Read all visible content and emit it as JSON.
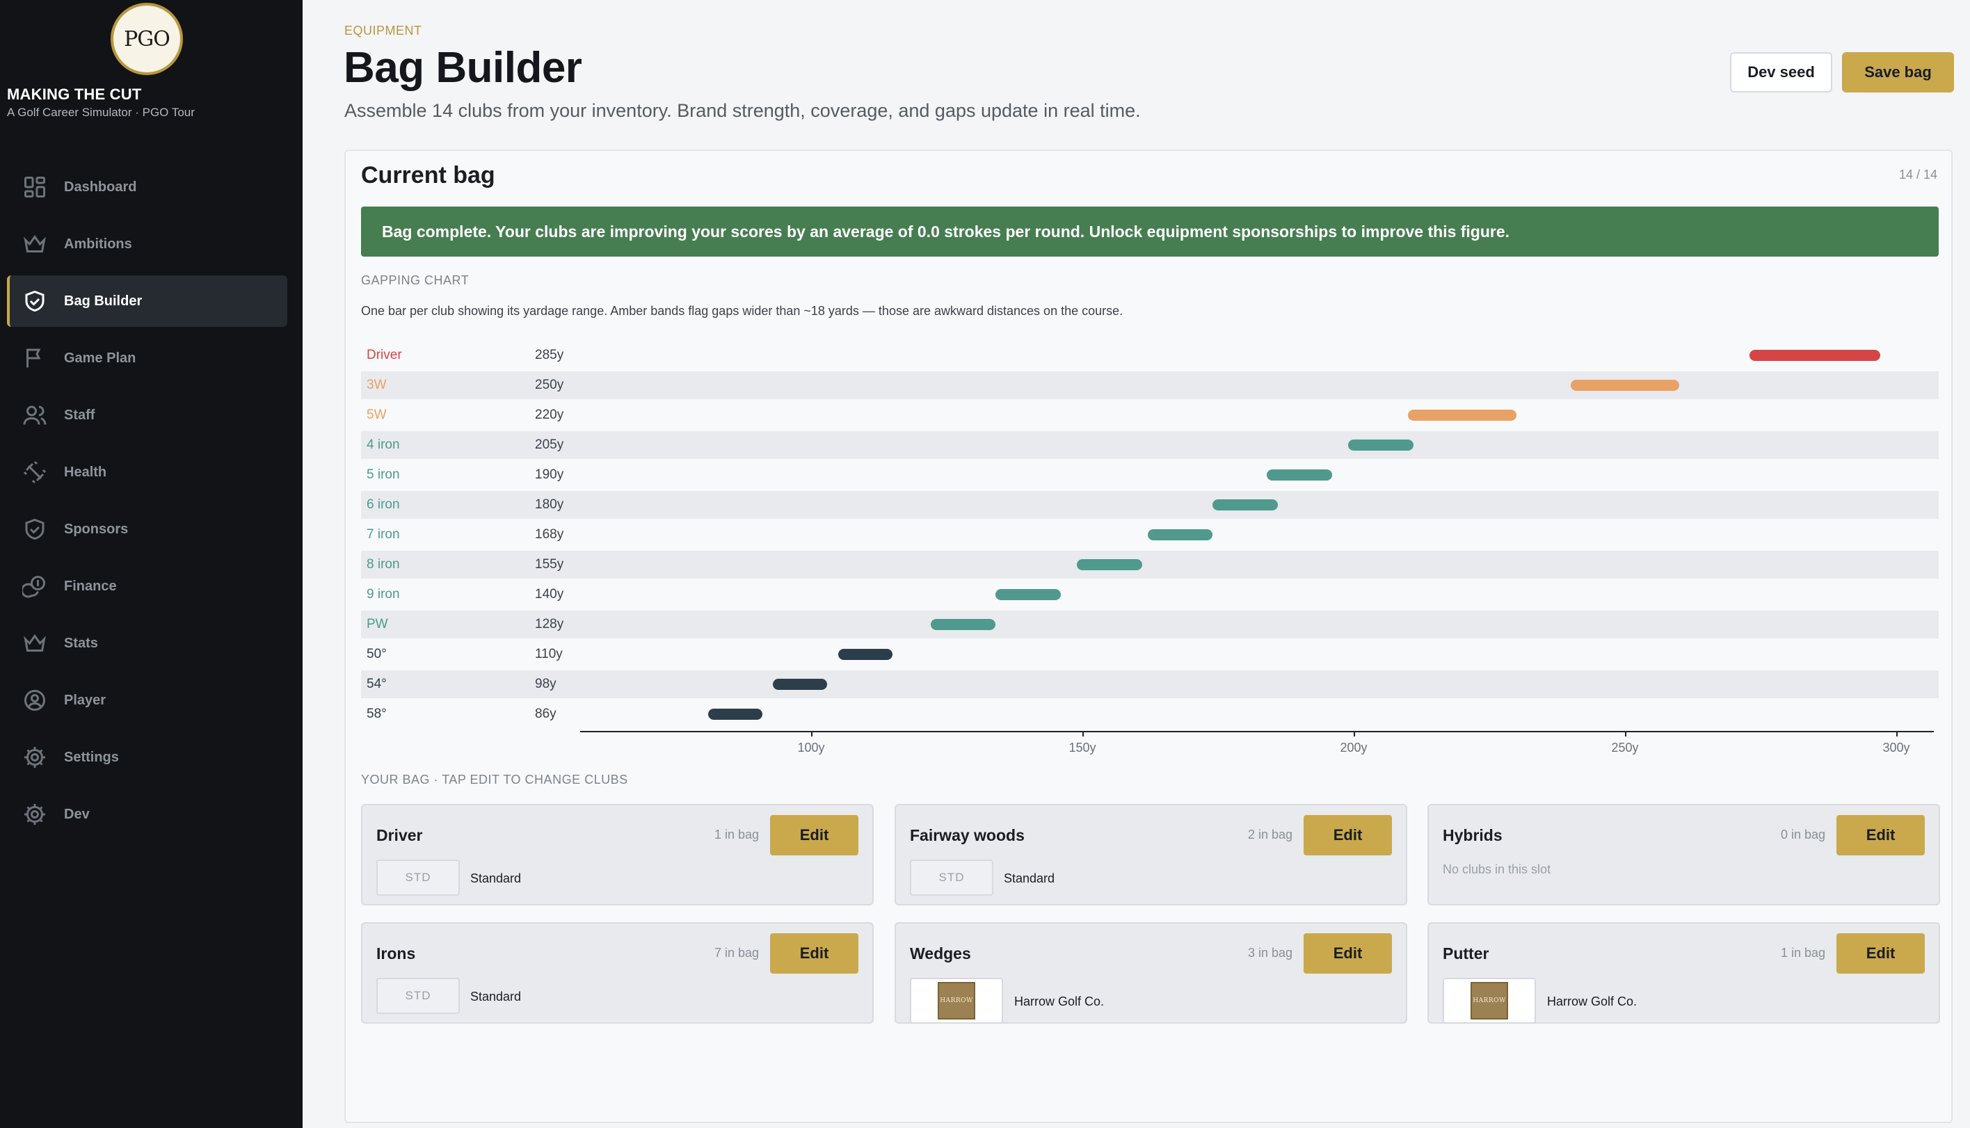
{
  "app": {
    "logo_text": "PGO",
    "title": "MAKING THE CUT",
    "subtitle": "A Golf Career Simulator · PGO Tour"
  },
  "sidebar": {
    "items": [
      {
        "label": "Dashboard",
        "icon": "dashboard-icon"
      },
      {
        "label": "Ambitions",
        "icon": "crown-icon"
      },
      {
        "label": "Bag Builder",
        "icon": "handshake-icon",
        "active": true
      },
      {
        "label": "Game Plan",
        "icon": "flag-icon"
      },
      {
        "label": "Staff",
        "icon": "users-icon"
      },
      {
        "label": "Health",
        "icon": "dumbbell-icon"
      },
      {
        "label": "Sponsors",
        "icon": "handshake-icon"
      },
      {
        "label": "Finance",
        "icon": "coins-icon"
      },
      {
        "label": "Stats",
        "icon": "crown-icon"
      },
      {
        "label": "Player",
        "icon": "user-circle-icon"
      },
      {
        "label": "Settings",
        "icon": "gear-icon"
      },
      {
        "label": "Dev",
        "icon": "gear-icon"
      }
    ]
  },
  "header": {
    "eyebrow": "EQUIPMENT",
    "title": "Bag Builder",
    "subtitle": "Assemble 14 clubs from your inventory. Brand strength, coverage, and gaps update in real time.",
    "dev_seed_label": "Dev seed",
    "save_label": "Save bag"
  },
  "panel": {
    "title": "Current bag",
    "count": "14 / 14",
    "banner": "Bag complete. Your clubs are improving your scores by an average of 0.0 strokes per round. Unlock equipment sponsorships to improve this figure.",
    "gapping_label": "GAPPING CHART",
    "gapping_desc": "One bar per club showing its yardage range. Amber bands flag gaps wider than ~18 yards — those are awkward distances on the course.",
    "bag_label": "YOUR BAG · TAP EDIT TO CHANGE CLUBS"
  },
  "colors": {
    "driver": "#d64545",
    "gap": "#e9a265",
    "iron": "#4f9a8c",
    "wedge": "#2c3e4a",
    "accent": "#c9a94c",
    "banner": "#467d51"
  },
  "chart_data": {
    "type": "bar",
    "orientation": "horizontal-range",
    "x_ticks": [
      "100y",
      "150y",
      "200y",
      "250y",
      "300y"
    ],
    "xlim": [
      60,
      300
    ],
    "rows": [
      {
        "club": "Driver",
        "yards": "285y",
        "min": 273,
        "max": 297,
        "kind": "driver"
      },
      {
        "club": "3W",
        "yards": "250y",
        "min": 240,
        "max": 260,
        "kind": "gap"
      },
      {
        "club": "5W",
        "yards": "220y",
        "min": 210,
        "max": 230,
        "kind": "gap"
      },
      {
        "club": "4 iron",
        "yards": "205y",
        "min": 199,
        "max": 211,
        "kind": "iron"
      },
      {
        "club": "5 iron",
        "yards": "190y",
        "min": 184,
        "max": 196,
        "kind": "iron"
      },
      {
        "club": "6 iron",
        "yards": "180y",
        "min": 174,
        "max": 186,
        "kind": "iron"
      },
      {
        "club": "7 iron",
        "yards": "168y",
        "min": 162,
        "max": 174,
        "kind": "iron"
      },
      {
        "club": "8 iron",
        "yards": "155y",
        "min": 149,
        "max": 161,
        "kind": "iron"
      },
      {
        "club": "9 iron",
        "yards": "140y",
        "min": 134,
        "max": 146,
        "kind": "iron"
      },
      {
        "club": "PW",
        "yards": "128y",
        "min": 122,
        "max": 134,
        "kind": "iron"
      },
      {
        "club": "50°",
        "yards": "110y",
        "min": 105,
        "max": 115,
        "kind": "wedge"
      },
      {
        "club": "54°",
        "yards": "98y",
        "min": 93,
        "max": 103,
        "kind": "wedge"
      },
      {
        "club": "58°",
        "yards": "86y",
        "min": 81,
        "max": 91,
        "kind": "wedge"
      }
    ]
  },
  "bag": {
    "edit_label": "Edit",
    "cards": [
      {
        "title": "Driver",
        "count": "1 in bag",
        "badge": "STD",
        "brand": "Standard"
      },
      {
        "title": "Fairway woods",
        "count": "2 in bag",
        "badge": "STD",
        "brand": "Standard"
      },
      {
        "title": "Hybrids",
        "count": "0 in bag",
        "empty": "No clubs in this slot"
      },
      {
        "title": "Irons",
        "count": "7 in bag",
        "badge": "STD",
        "brand": "Standard"
      },
      {
        "title": "Wedges",
        "count": "3 in bag",
        "logo_text": "HARROW",
        "brand": "Harrow Golf Co."
      },
      {
        "title": "Putter",
        "count": "1 in bag",
        "logo_text": "HARROW",
        "brand": "Harrow Golf Co."
      }
    ]
  }
}
